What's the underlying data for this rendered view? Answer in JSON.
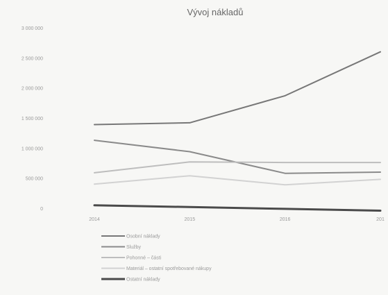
{
  "chart_data": {
    "type": "line",
    "title": "Vývoj nákladů",
    "xlabel": "",
    "ylabel": "",
    "categories": [
      "2014",
      "2015",
      "2016",
      "201"
    ],
    "y_ticks": [
      "0",
      "500 000",
      "1 000 000",
      "1 500 000",
      "2 000 000",
      "2 500 000",
      "3 000 000"
    ],
    "ylim": [
      0,
      3000000
    ],
    "grid": false,
    "legend_position": "bottom",
    "series": [
      {
        "name": "Osobní náklady",
        "color": "#777777",
        "values": [
          1390000,
          1420000,
          1870000,
          2600000
        ]
      },
      {
        "name": "Služby",
        "color": "#8a8a8a",
        "values": [
          1130000,
          940000,
          580000,
          600000
        ]
      },
      {
        "name": "Pohonné – části",
        "color": "#bdbdbd",
        "values": [
          590000,
          770000,
          760000,
          760000
        ]
      },
      {
        "name": "Materiál – ostatní spotřebované nákupy",
        "color": "#d2d2d2",
        "values": [
          400000,
          540000,
          390000,
          480000
        ]
      },
      {
        "name": "Ostatní náklady",
        "color": "#4a4a4a",
        "values": [
          50000,
          20000,
          -10000,
          -40000
        ]
      }
    ]
  }
}
